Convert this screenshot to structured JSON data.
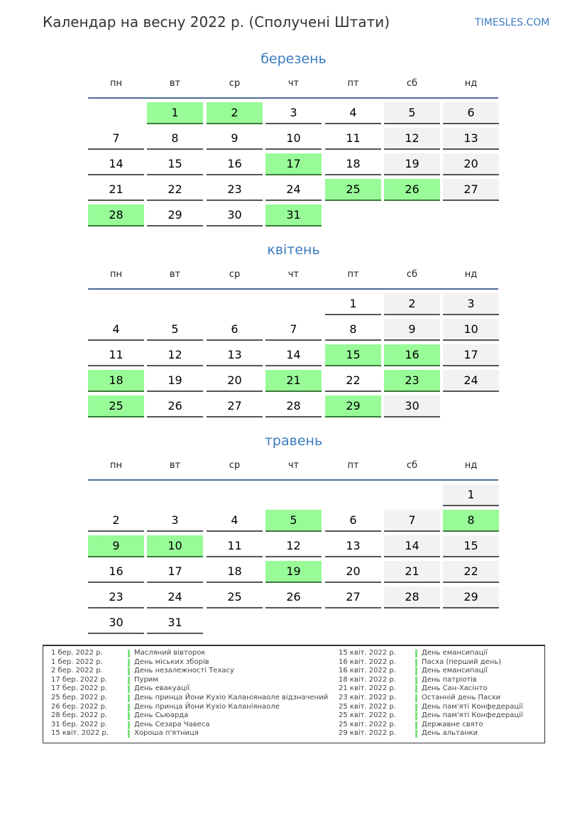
{
  "header": {
    "title": "Календар на весну 2022 р. (Сполучені Штати)",
    "brand": "TIMESLES.COM"
  },
  "weekdays": [
    "пн",
    "вт",
    "ср",
    "чт",
    "пт",
    "сб",
    "нд"
  ],
  "colors": {
    "holiday": "#98fb98",
    "weekend": "#f2f2f2",
    "accent": "#3a7bbf"
  },
  "months": [
    {
      "name": "березень",
      "weeks": [
        [
          null,
          1,
          2,
          3,
          4,
          5,
          6
        ],
        [
          7,
          8,
          9,
          10,
          11,
          12,
          13
        ],
        [
          14,
          15,
          16,
          17,
          18,
          19,
          20
        ],
        [
          21,
          22,
          23,
          24,
          25,
          26,
          27
        ],
        [
          28,
          29,
          30,
          31,
          null,
          null,
          null
        ]
      ],
      "holidays": [
        1,
        2,
        17,
        25,
        26,
        28,
        31
      ]
    },
    {
      "name": "квітень",
      "weeks": [
        [
          null,
          null,
          null,
          null,
          1,
          2,
          3
        ],
        [
          4,
          5,
          6,
          7,
          8,
          9,
          10
        ],
        [
          11,
          12,
          13,
          14,
          15,
          16,
          17
        ],
        [
          18,
          19,
          20,
          21,
          22,
          23,
          24
        ],
        [
          25,
          26,
          27,
          28,
          29,
          30,
          null
        ]
      ],
      "holidays": [
        15,
        16,
        18,
        21,
        23,
        25,
        29
      ]
    },
    {
      "name": "травень",
      "weeks": [
        [
          null,
          null,
          null,
          null,
          null,
          null,
          1
        ],
        [
          2,
          3,
          4,
          5,
          6,
          7,
          8
        ],
        [
          9,
          10,
          11,
          12,
          13,
          14,
          15
        ],
        [
          16,
          17,
          18,
          19,
          20,
          21,
          22
        ],
        [
          23,
          24,
          25,
          26,
          27,
          28,
          29
        ],
        [
          30,
          31,
          null,
          null,
          null,
          null,
          null
        ]
      ],
      "holidays": [
        5,
        8,
        9,
        10,
        19
      ]
    }
  ],
  "legend": [
    {
      "date": "1 бер. 2022 р.",
      "name": "Масляний вівторок"
    },
    {
      "date": "1 бер. 2022 р.",
      "name": "День міських зборів"
    },
    {
      "date": "2 бер. 2022 р.",
      "name": "День незалежності Техасу"
    },
    {
      "date": "17 бер. 2022 р.",
      "name": "Пурим"
    },
    {
      "date": "17 бер. 2022 р.",
      "name": "День евакуації"
    },
    {
      "date": "25 бер. 2022 р.",
      "name": "День принца Йони Кухіо Каланіянаоле відзначений"
    },
    {
      "date": "26 бер. 2022 р.",
      "name": "День принца Йони Кухіо Каланіянаоле"
    },
    {
      "date": "28 бер. 2022 р.",
      "name": "День Сьюарда"
    },
    {
      "date": "31 бер. 2022 р.",
      "name": "День Сезара Чавеса"
    },
    {
      "date": "15 квіт. 2022 р.",
      "name": "Хороша п'ятниця"
    },
    {
      "date": "15 квіт. 2022 р.",
      "name": "День емансипації"
    },
    {
      "date": "16 квіт. 2022 р.",
      "name": "Пасха (перший день)"
    },
    {
      "date": "16 квіт. 2022 р.",
      "name": "День емансипації"
    },
    {
      "date": "18 квіт. 2022 р.",
      "name": "День патріотів"
    },
    {
      "date": "21 квіт. 2022 р.",
      "name": "День Сан-Хасінто"
    },
    {
      "date": "23 квіт. 2022 р.",
      "name": "Останній день Пасхи"
    },
    {
      "date": "25 квіт. 2022 р.",
      "name": "День пам'яті Конфедерації"
    },
    {
      "date": "25 квіт. 2022 р.",
      "name": "День пам'яті Конфедерації"
    },
    {
      "date": "25 квіт. 2022 р.",
      "name": "Державне свято"
    },
    {
      "date": "29 квіт. 2022 р.",
      "name": "День альтанки"
    }
  ]
}
